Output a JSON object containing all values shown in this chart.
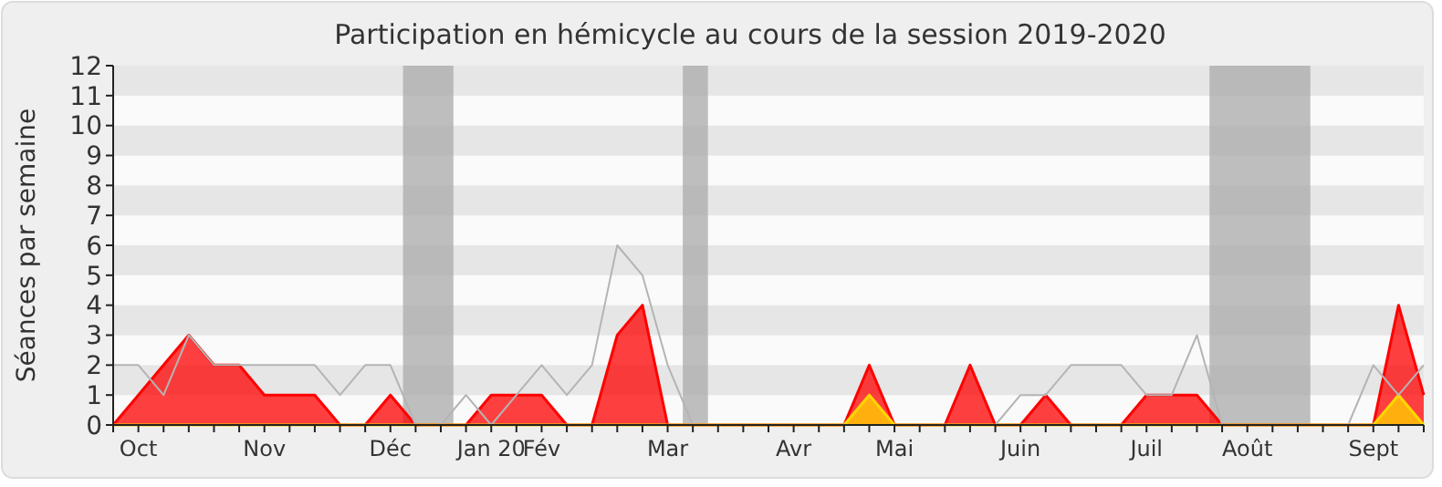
{
  "chart_data": {
    "type": "area",
    "title": "Participation en hémicycle au cours de la session 2019-2020",
    "ylabel": "Séances par semaine",
    "categories": [
      null,
      "Oct",
      null,
      null,
      null,
      null,
      "Nov",
      null,
      null,
      null,
      null,
      "Déc",
      null,
      null,
      null,
      "Jan 20",
      null,
      "Fév",
      null,
      null,
      null,
      null,
      "Mar",
      null,
      null,
      null,
      null,
      "Avr",
      null,
      null,
      null,
      "Mai",
      null,
      null,
      null,
      null,
      "Juin",
      null,
      null,
      null,
      null,
      "Juil",
      null,
      null,
      null,
      "Août",
      null,
      null,
      null,
      null,
      "Sept",
      null,
      null
    ],
    "series": [
      {
        "type": "line",
        "color": "#b4b4b4",
        "values": [
          2,
          2,
          1,
          3,
          2,
          2,
          2,
          2,
          2,
          1,
          2,
          2,
          0,
          0,
          1,
          0,
          1,
          2,
          1,
          2,
          6,
          5,
          2,
          0,
          0,
          0,
          0,
          0,
          0,
          0,
          0,
          0,
          0,
          0,
          0,
          0,
          1,
          1,
          2,
          2,
          2,
          1,
          1,
          3,
          0,
          0,
          0,
          0,
          0,
          0,
          2,
          1,
          2
        ]
      },
      {
        "type": "area",
        "color": "#ff0000",
        "values": [
          0,
          1,
          2,
          3,
          2,
          2,
          1,
          1,
          1,
          0,
          0,
          1,
          0,
          0,
          0,
          1,
          1,
          1,
          0,
          0,
          3,
          4,
          0,
          0,
          0,
          0,
          0,
          0,
          0,
          0,
          2,
          0,
          0,
          0,
          2,
          0,
          0,
          1,
          0,
          0,
          0,
          1,
          1,
          1,
          0,
          0,
          0,
          0,
          0,
          0,
          0,
          4,
          1
        ]
      },
      {
        "type": "area",
        "color": "#ffd700",
        "values": [
          0,
          0,
          0,
          0,
          0,
          0,
          0,
          0,
          0,
          0,
          0,
          0,
          0,
          0,
          0,
          0,
          0,
          0,
          0,
          0,
          0,
          0,
          0,
          0,
          0,
          0,
          0,
          0,
          0,
          0,
          1,
          0,
          0,
          0,
          0,
          0,
          0,
          0,
          0,
          0,
          0,
          0,
          0,
          0,
          0,
          0,
          0,
          0,
          0,
          0,
          0,
          1,
          0
        ]
      }
    ],
    "ylim": [
      0,
      12
    ],
    "yticks": [
      0,
      1,
      2,
      3,
      4,
      5,
      6,
      7,
      8,
      9,
      10,
      11,
      12
    ]
  }
}
